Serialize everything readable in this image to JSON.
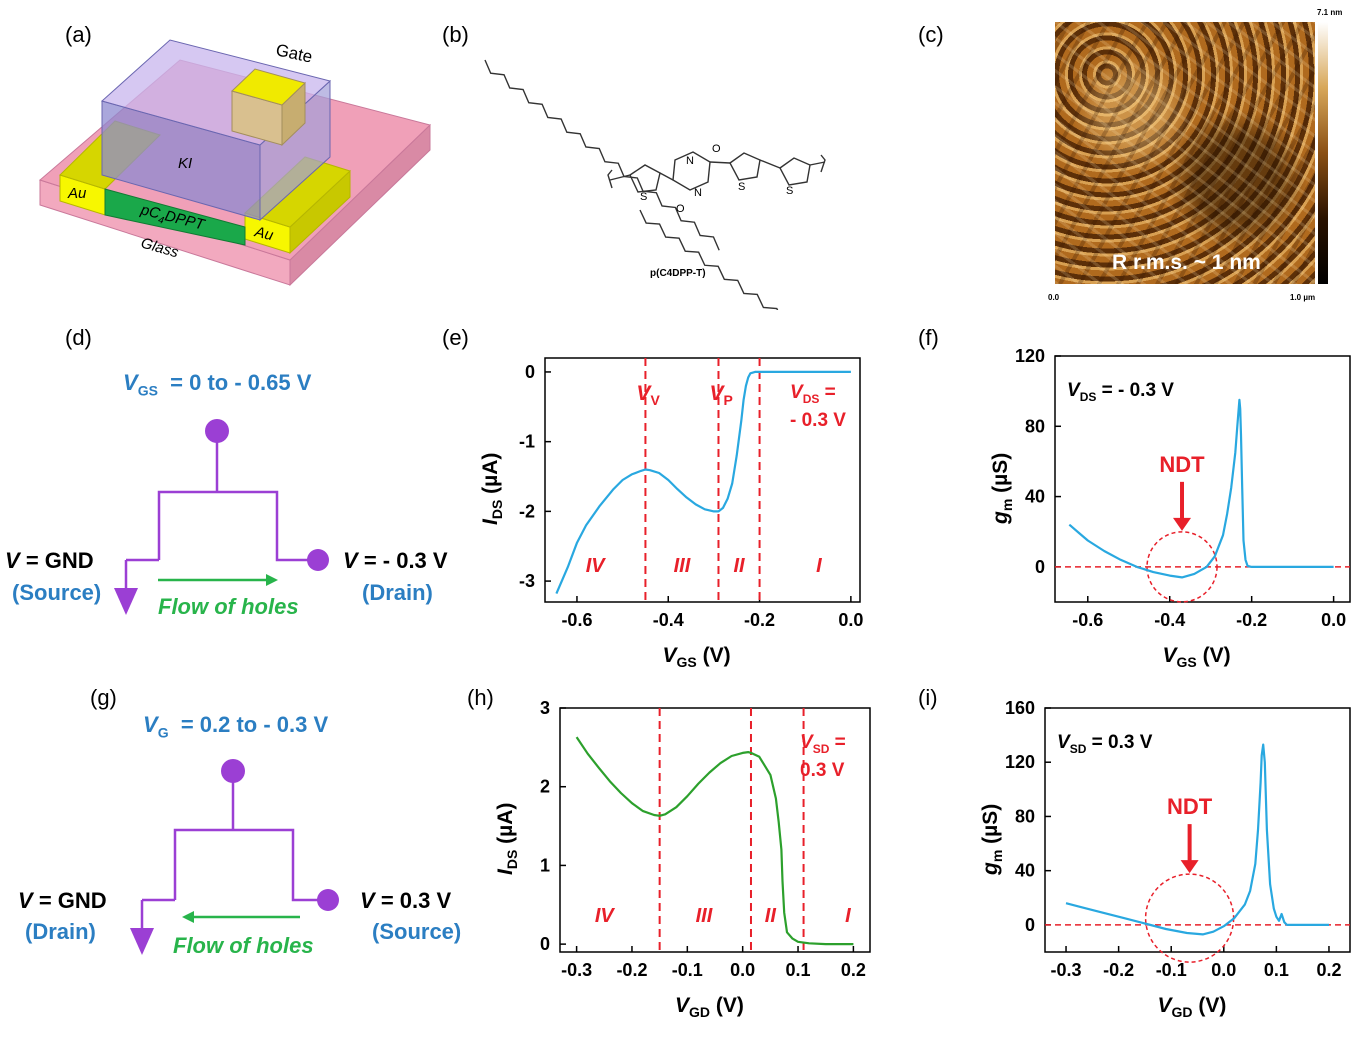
{
  "panel_labels": [
    "(a)",
    "(b)",
    "(c)",
    "(d)",
    "(e)",
    "(f)",
    "(g)",
    "(h)",
    "(i)"
  ],
  "device": {
    "gate": "Gate",
    "electrolyte": "KI",
    "channel": "pC",
    "channel_sub": "4",
    "channel_tail": "DPPT",
    "electrode_left": "Au",
    "electrode_right": "Au",
    "substrate": "Glass"
  },
  "molecule": {
    "name": "p(C4DPP-T)",
    "o": "O",
    "n": "N",
    "s": "S"
  },
  "afm": {
    "scale_max": "7.1 nm",
    "x_start": "0.0",
    "x_end": "1.0 µm",
    "rms_text": "R r.m.s. ~ 1 nm"
  },
  "circuit_d": {
    "title_var": "V",
    "title_sub": "GS",
    "title_range": "= 0 to - 0.65 V",
    "left_var": "V",
    "left_val": "= GND",
    "left_role": "(Source)",
    "right_var": "V",
    "right_val": "= - 0.3 V",
    "right_role": "(Drain)",
    "flow": "Flow of holes"
  },
  "circuit_g": {
    "title_var": "V",
    "title_sub": "G",
    "title_range": "= 0.2 to - 0.3 V",
    "left_var": "V",
    "left_val": "= GND",
    "left_role": "(Drain)",
    "right_var": "V",
    "right_val": "= 0.3 V",
    "right_role": "(Source)",
    "flow": "Flow of holes"
  },
  "colors": {
    "blue_curve": "#29a8e0",
    "green_curve": "#2ca02c",
    "red": "#e8202a",
    "purple": "#9b3fd4",
    "blue_text": "#2b7ec2",
    "green_text": "#28b44b"
  },
  "chart_data": [
    {
      "id": "e",
      "type": "line",
      "xlabel_var": "V",
      "xlabel_sub": "GS",
      "xlabel_unit": "(V)",
      "ylabel_var": "I",
      "ylabel_sub": "DS",
      "ylabel_unit": "(µA)",
      "xlim": [
        -0.67,
        0.02
      ],
      "ylim": [
        -3.3,
        0.2
      ],
      "xticks": [
        -0.6,
        -0.4,
        -0.2,
        0.0
      ],
      "xtick_labels": [
        "-0.6",
        "-0.4",
        "-0.2",
        "0.0"
      ],
      "yticks": [
        0,
        -1,
        -2,
        -3
      ],
      "ytick_labels": [
        "0",
        "-1",
        "-2",
        "-3"
      ],
      "vlines": [
        -0.45,
        -0.29,
        -0.2
      ],
      "vline_labels": [
        {
          "var": "V",
          "sub": "V",
          "x": -0.45
        },
        {
          "var": "V",
          "sub": "P",
          "x": -0.29
        }
      ],
      "annotation": {
        "line1_var": "V",
        "line1_sub": "DS",
        "line1_tail": " =",
        "line2": "- 0.3 V"
      },
      "regions": [
        {
          "label": "IV",
          "x": -0.56
        },
        {
          "label": "III",
          "x": -0.37
        },
        {
          "label": "II",
          "x": -0.245
        },
        {
          "label": "I",
          "x": -0.07
        }
      ],
      "series": [
        {
          "name": "IDS",
          "color": "#29a8e0",
          "x": [
            -0.645,
            -0.62,
            -0.6,
            -0.58,
            -0.55,
            -0.52,
            -0.5,
            -0.48,
            -0.46,
            -0.45,
            -0.44,
            -0.42,
            -0.4,
            -0.38,
            -0.36,
            -0.34,
            -0.32,
            -0.3,
            -0.29,
            -0.28,
            -0.27,
            -0.26,
            -0.25,
            -0.24,
            -0.235,
            -0.23,
            -0.225,
            -0.22,
            -0.21,
            -0.2,
            -0.15,
            -0.1,
            -0.05,
            0.0
          ],
          "y": [
            -3.18,
            -2.8,
            -2.45,
            -2.2,
            -1.92,
            -1.68,
            -1.55,
            -1.47,
            -1.42,
            -1.4,
            -1.41,
            -1.45,
            -1.55,
            -1.68,
            -1.8,
            -1.9,
            -1.97,
            -2.0,
            -2.0,
            -1.95,
            -1.82,
            -1.6,
            -1.2,
            -0.7,
            -0.4,
            -0.2,
            -0.08,
            -0.02,
            0.0,
            0.0,
            0.0,
            0.0,
            0.0,
            0.0
          ]
        }
      ]
    },
    {
      "id": "f",
      "type": "line",
      "xlabel_var": "V",
      "xlabel_sub": "GS",
      "xlabel_unit": "(V)",
      "ylabel_var": "g",
      "ylabel_sub": "m",
      "ylabel_unit": "(µS)",
      "xlim": [
        -0.68,
        0.04
      ],
      "ylim": [
        -20,
        120
      ],
      "xticks": [
        -0.6,
        -0.4,
        -0.2,
        0.0
      ],
      "xtick_labels": [
        "-0.6",
        "-0.4",
        "-0.2",
        "0.0"
      ],
      "yticks": [
        0,
        40,
        80,
        120
      ],
      "ytick_labels": [
        "0",
        "40",
        "80",
        "120"
      ],
      "annotation": {
        "var": "V",
        "sub": "DS",
        "tail": " = - 0.3 V"
      },
      "ndt": {
        "label": "NDT",
        "x": -0.37,
        "y": 0
      },
      "series": [
        {
          "name": "gm",
          "color": "#29a8e0",
          "x": [
            -0.645,
            -0.64,
            -0.62,
            -0.6,
            -0.56,
            -0.52,
            -0.48,
            -0.44,
            -0.4,
            -0.37,
            -0.34,
            -0.31,
            -0.29,
            -0.27,
            -0.26,
            -0.25,
            -0.24,
            -0.235,
            -0.23,
            -0.228,
            -0.226,
            -0.223,
            -0.22,
            -0.215,
            -0.21,
            -0.2,
            -0.1,
            0.0
          ],
          "y": [
            24,
            23,
            19,
            15,
            9,
            4,
            0,
            -3,
            -5,
            -6,
            -4,
            0,
            6,
            18,
            30,
            45,
            65,
            80,
            95,
            90,
            75,
            45,
            15,
            4,
            0.5,
            0,
            0,
            0
          ]
        }
      ]
    },
    {
      "id": "h",
      "type": "line",
      "xlabel_var": "V",
      "xlabel_sub": "GD",
      "xlabel_unit": "(V)",
      "ylabel_var": "I",
      "ylabel_sub": "DS",
      "ylabel_unit": "(µA)",
      "xlim": [
        -0.33,
        0.23
      ],
      "ylim": [
        -0.1,
        3.0
      ],
      "xticks": [
        -0.3,
        -0.2,
        -0.1,
        0.0,
        0.1,
        0.2
      ],
      "xtick_labels": [
        "-0.3",
        "-0.2",
        "-0.1",
        "0.0",
        "0.1",
        "0.2"
      ],
      "yticks": [
        0,
        1,
        2,
        3
      ],
      "ytick_labels": [
        "0",
        "1",
        "2",
        "3"
      ],
      "vlines": [
        -0.15,
        0.015,
        0.11
      ],
      "annotation": {
        "line1_var": "V",
        "line1_sub": "SD",
        "line1_tail": " =",
        "line2": "0.3 V"
      },
      "regions": [
        {
          "label": "IV",
          "x": -0.25
        },
        {
          "label": "III",
          "x": -0.07
        },
        {
          "label": "II",
          "x": 0.05
        },
        {
          "label": "I",
          "x": 0.19
        }
      ],
      "series": [
        {
          "name": "IDS",
          "color": "#2ca02c",
          "x": [
            -0.3,
            -0.28,
            -0.26,
            -0.24,
            -0.22,
            -0.2,
            -0.18,
            -0.16,
            -0.15,
            -0.14,
            -0.12,
            -0.1,
            -0.08,
            -0.06,
            -0.04,
            -0.02,
            0.0,
            0.01,
            0.015,
            0.03,
            0.05,
            0.06,
            0.065,
            0.07,
            0.072,
            0.075,
            0.08,
            0.09,
            0.1,
            0.12,
            0.15,
            0.2
          ],
          "y": [
            2.63,
            2.42,
            2.24,
            2.07,
            1.92,
            1.79,
            1.69,
            1.64,
            1.63,
            1.65,
            1.74,
            1.88,
            2.04,
            2.18,
            2.3,
            2.39,
            2.43,
            2.44,
            2.43,
            2.38,
            2.15,
            1.85,
            1.55,
            1.2,
            0.8,
            0.4,
            0.15,
            0.07,
            0.03,
            0.01,
            0.0,
            0.0
          ]
        }
      ]
    },
    {
      "id": "i",
      "type": "line",
      "xlabel_var": "V",
      "xlabel_sub": "GD",
      "xlabel_unit": "(V)",
      "ylabel_var": "g",
      "ylabel_sub": "m",
      "ylabel_unit": "(µS)",
      "xlim": [
        -0.34,
        0.24
      ],
      "ylim": [
        -20,
        160
      ],
      "xticks": [
        -0.3,
        -0.2,
        -0.1,
        0.0,
        0.1,
        0.2
      ],
      "xtick_labels": [
        "-0.3",
        "-0.2",
        "-0.1",
        "0.0",
        "0.1",
        "0.2"
      ],
      "yticks": [
        0,
        40,
        80,
        120,
        160
      ],
      "ytick_labels": [
        "0",
        "40",
        "80",
        "120",
        "160"
      ],
      "annotation": {
        "var": "V",
        "sub": "SD",
        "tail": " = 0.3 V"
      },
      "ndt": {
        "label": "NDT",
        "x": -0.065,
        "y": 5
      },
      "series": [
        {
          "name": "gm",
          "color": "#29a8e0",
          "x": [
            -0.3,
            -0.27,
            -0.23,
            -0.19,
            -0.15,
            -0.11,
            -0.07,
            -0.04,
            -0.02,
            0.0,
            0.02,
            0.04,
            0.05,
            0.06,
            0.065,
            0.07,
            0.072,
            0.075,
            0.078,
            0.082,
            0.088,
            0.095,
            0.1,
            0.105,
            0.11,
            0.115,
            0.12,
            0.15,
            0.2
          ],
          "y": [
            16,
            13,
            9,
            5,
            1,
            -3,
            -6,
            -7,
            -5,
            -1,
            5,
            15,
            25,
            45,
            70,
            105,
            125,
            133,
            120,
            70,
            30,
            12,
            6,
            3,
            8,
            2,
            0,
            0,
            0
          ]
        }
      ]
    }
  ]
}
